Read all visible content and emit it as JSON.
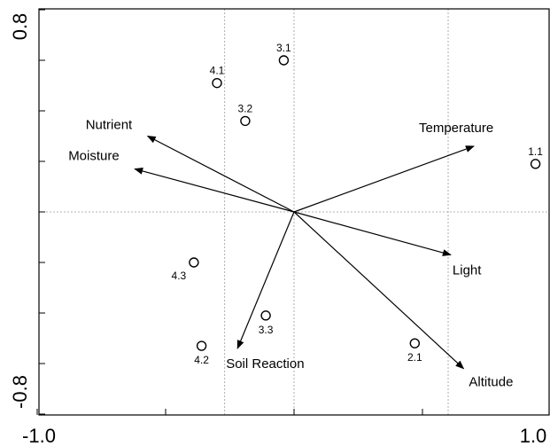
{
  "chart_data": {
    "type": "scatter",
    "subtype": "biplot",
    "title": "",
    "xlabel": "",
    "ylabel": "",
    "xlim": [
      -1.0,
      1.0
    ],
    "ylim": [
      -0.8,
      0.8
    ],
    "x_tick_labels": [
      "-1.0",
      "1.0"
    ],
    "y_tick_labels": [
      "0.8",
      "-0.8"
    ],
    "grid": false,
    "reference_lines": {
      "x": [
        0,
        -0.27,
        0.6
      ],
      "y": [
        0
      ]
    },
    "sites": [
      {
        "label": "1.1",
        "x": 0.94,
        "y": 0.19
      },
      {
        "label": "2.1",
        "x": 0.47,
        "y": -0.52
      },
      {
        "label": "3.1",
        "x": -0.04,
        "y": 0.6
      },
      {
        "label": "3.2",
        "x": -0.19,
        "y": 0.36
      },
      {
        "label": "3.3",
        "x": -0.11,
        "y": -0.41
      },
      {
        "label": "4.1",
        "x": -0.3,
        "y": 0.51
      },
      {
        "label": "4.2",
        "x": -0.36,
        "y": -0.53
      },
      {
        "label": "4.3",
        "x": -0.39,
        "y": -0.2
      }
    ],
    "vectors": [
      {
        "label": "Temperature",
        "x": 0.7,
        "y": 0.26
      },
      {
        "label": "Light",
        "x": 0.61,
        "y": -0.17
      },
      {
        "label": "Altitude",
        "x": 0.66,
        "y": -0.62
      },
      {
        "label": "Soil Reaction",
        "x": -0.22,
        "y": -0.54
      },
      {
        "label": "Moisture",
        "x": -0.62,
        "y": 0.17
      },
      {
        "label": "Nutrient",
        "x": -0.57,
        "y": 0.3
      }
    ]
  }
}
